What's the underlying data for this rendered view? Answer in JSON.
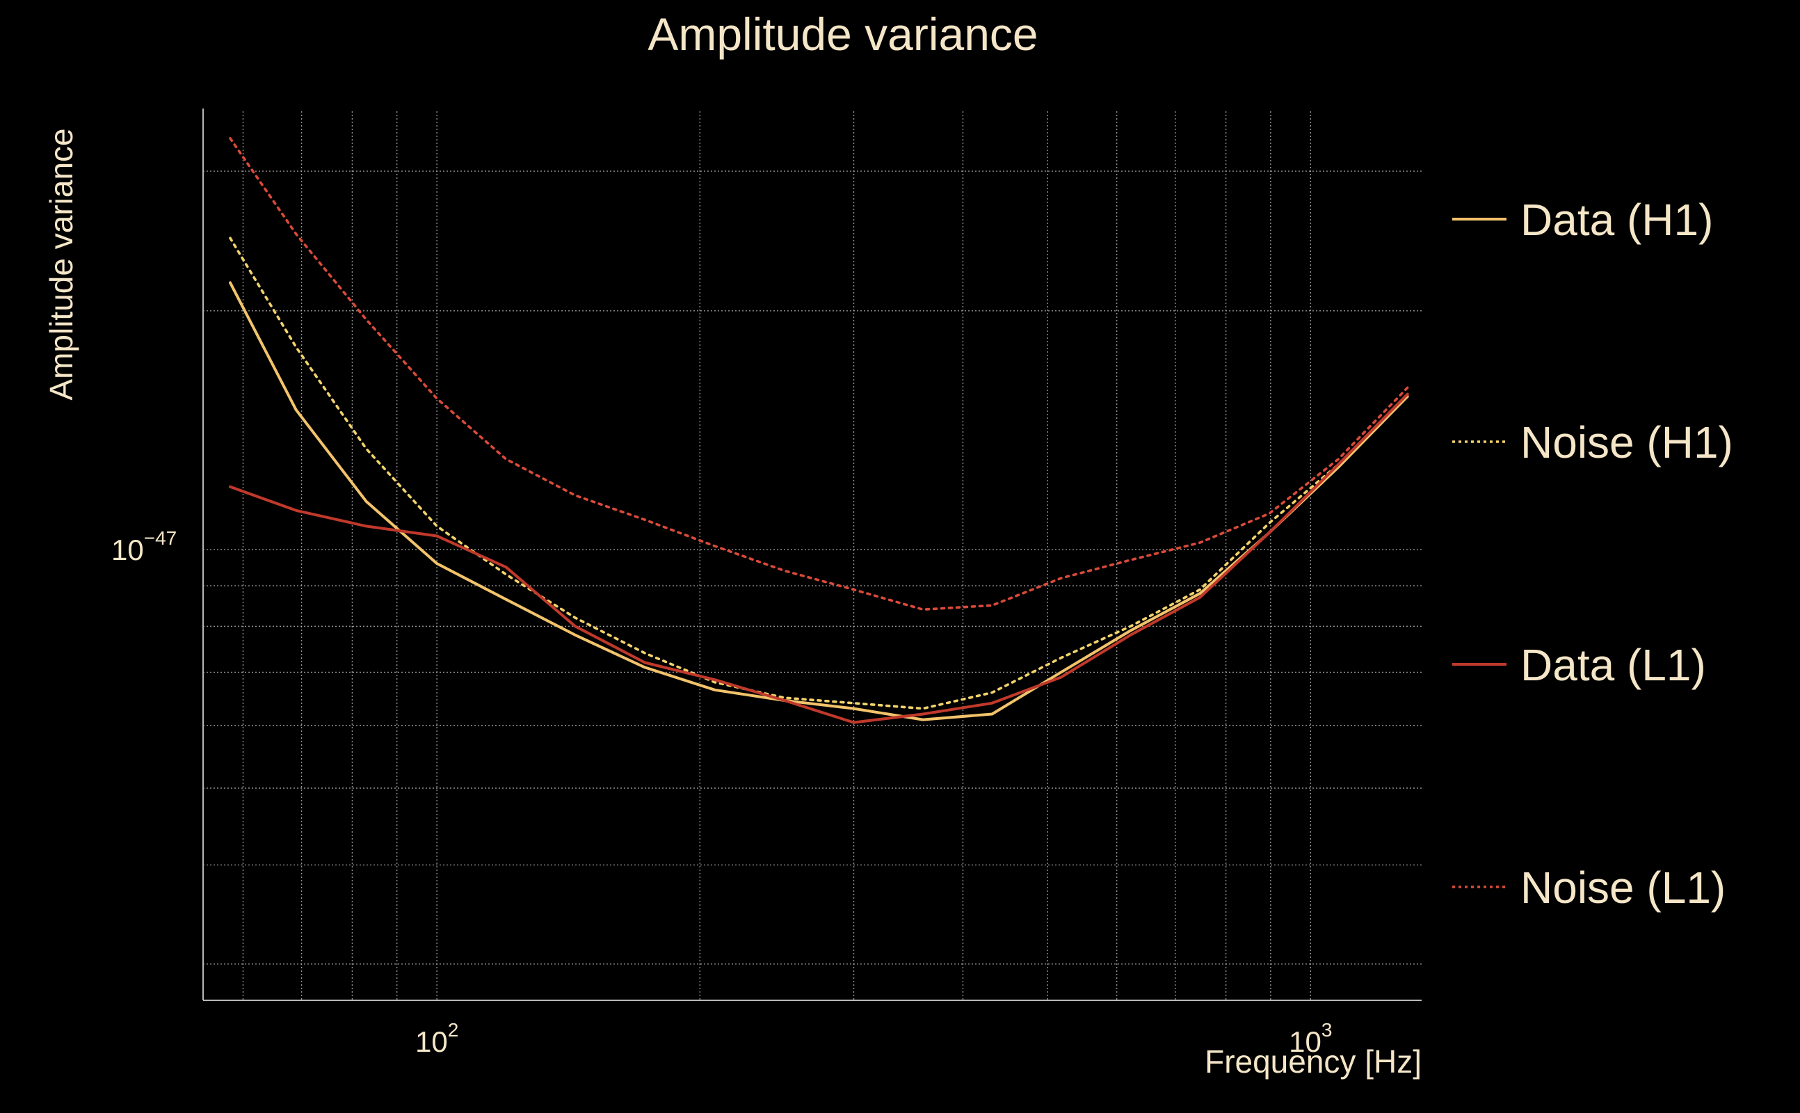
{
  "chart_data": {
    "type": "line",
    "title": "Amplitude variance",
    "xlabel": "Frequency [Hz]",
    "ylabel": "Amplitude variance",
    "xscale": "log",
    "yscale": "log",
    "xlim": [
      54,
      1340
    ],
    "ylim": [
      2.7e-48,
      3.57e-47
    ],
    "grid": true,
    "legend_position": "right",
    "x": [
      58,
      69,
      83,
      100,
      120,
      144,
      173,
      208,
      250,
      300,
      360,
      432,
      518,
      622,
      747,
      897,
      1076,
      1291
    ],
    "series": [
      {
        "name": "Data (H1)",
        "style": "solid",
        "color": "#f2c36b",
        "values": [
          2.17e-47,
          1.5e-47,
          1.15e-47,
          9.6e-48,
          8.65e-48,
          7.8e-48,
          7.1e-48,
          6.65e-48,
          6.45e-48,
          6.3e-48,
          6.1e-48,
          6.2e-48,
          7e-48,
          7.9e-48,
          8.8e-48,
          1.05e-47,
          1.27e-47,
          1.56e-47
        ]
      },
      {
        "name": "Noise (H1)",
        "style": "dotted",
        "color": "#f2d36b",
        "values": [
          2.47e-47,
          1.8e-47,
          1.34e-47,
          1.07e-47,
          9.3e-48,
          8.2e-48,
          7.4e-48,
          6.8e-48,
          6.5e-48,
          6.4e-48,
          6.3e-48,
          6.6e-48,
          7.3e-48,
          8e-48,
          8.9e-48,
          1.08e-47,
          1.28e-47,
          1.57e-47
        ]
      },
      {
        "name": "Data (L1)",
        "style": "solid",
        "color": "#c0392b",
        "values": [
          1.2e-47,
          1.12e-47,
          1.07e-47,
          1.04e-47,
          9.5e-48,
          8e-48,
          7.2e-48,
          6.85e-48,
          6.45e-48,
          6.05e-48,
          6.2e-48,
          6.4e-48,
          6.9e-48,
          7.8e-48,
          8.7e-48,
          1.05e-47,
          1.28e-47,
          1.57e-47
        ]
      },
      {
        "name": "Noise (L1)",
        "style": "dotted",
        "color": "#d94a3a",
        "values": [
          3.3e-47,
          2.5e-47,
          1.95e-47,
          1.55e-47,
          1.3e-47,
          1.17e-47,
          1.09e-47,
          1.01e-47,
          9.4e-48,
          8.9e-48,
          8.4e-48,
          8.5e-48,
          9.2e-48,
          9.7e-48,
          1.02e-47,
          1.11e-47,
          1.3e-47,
          1.6e-47
        ]
      }
    ],
    "x_ticks": [
      {
        "value": 100,
        "base": "10",
        "exp": "2"
      },
      {
        "value": 1000,
        "base": "10",
        "exp": "3"
      }
    ],
    "y_ticks": [
      {
        "value": 1e-47,
        "base": "10",
        "exp": "−47"
      }
    ]
  },
  "colors": {
    "background": "#000000",
    "text": "#f5e6c8",
    "grid": "#b8b8b8"
  }
}
